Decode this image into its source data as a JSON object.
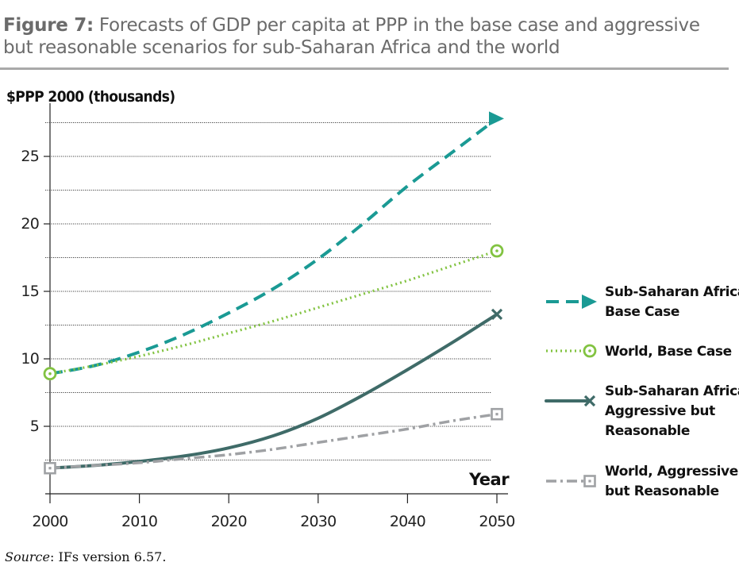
{
  "figure": {
    "label": "Figure 7:",
    "title": "Forecasts of GDP per capita at PPP in the base case and aggressive but reasonable scenarios for sub-Saharan Africa and the world"
  },
  "source": {
    "label": "Source",
    "text": ": IFs version 6.57."
  },
  "chart_data": {
    "type": "line",
    "ylabel": "$PPP 2000 (thousands)",
    "xlabel": "Year",
    "xlim": [
      2000,
      2050
    ],
    "ylim": [
      0,
      28
    ],
    "x_ticks": [
      2000,
      2010,
      2020,
      2030,
      2040,
      2050
    ],
    "y_ticks": [
      5,
      10,
      15,
      20,
      25
    ],
    "grid": "horizontal dotted, every 2.5",
    "legend_position": "right",
    "series": [
      {
        "name": "Sub-Saharan Africa, Base Case",
        "color": "#1a9a94",
        "style": "dashed",
        "marker": "arrow",
        "x": [
          2000,
          2005,
          2010,
          2015,
          2020,
          2025,
          2030,
          2035,
          2040,
          2045,
          2050
        ],
        "y": [
          8.9,
          9.5,
          10.5,
          11.8,
          13.4,
          15.2,
          17.4,
          20.0,
          22.8,
          25.3,
          27.8
        ]
      },
      {
        "name": "World, Base Case",
        "color": "#82c341",
        "style": "dotted",
        "marker": "circle",
        "x": [
          2000,
          2005,
          2010,
          2015,
          2020,
          2025,
          2030,
          2035,
          2040,
          2045,
          2050
        ],
        "y": [
          8.9,
          9.5,
          10.2,
          11.0,
          11.9,
          12.8,
          13.8,
          14.8,
          15.8,
          16.9,
          18.0
        ]
      },
      {
        "name": "Sub-Saharan Africa, Aggressive but Reasonable",
        "color": "#3f6b68",
        "style": "solid",
        "marker": "x",
        "x": [
          2000,
          2005,
          2010,
          2015,
          2020,
          2025,
          2030,
          2035,
          2040,
          2045,
          2050
        ],
        "y": [
          1.9,
          2.1,
          2.4,
          2.8,
          3.4,
          4.3,
          5.6,
          7.3,
          9.2,
          11.2,
          13.3
        ]
      },
      {
        "name": "World, Aggressive but Reasonable",
        "color": "#9fa1a4",
        "style": "dash-dot",
        "marker": "square",
        "x": [
          2000,
          2005,
          2010,
          2015,
          2020,
          2025,
          2030,
          2035,
          2040,
          2045,
          2050
        ],
        "y": [
          1.9,
          2.1,
          2.3,
          2.6,
          2.9,
          3.3,
          3.8,
          4.3,
          4.8,
          5.4,
          5.9
        ]
      }
    ]
  },
  "legend": {
    "items": [
      {
        "lines": [
          "Sub-Saharan Africa,",
          "Base Case"
        ]
      },
      {
        "lines": [
          "World, Base Case"
        ]
      },
      {
        "lines": [
          "Sub-Saharan Africa,",
          "Aggressive but",
          "Reasonable"
        ]
      },
      {
        "lines": [
          "World, Aggressive",
          "but Reasonable"
        ]
      }
    ]
  }
}
